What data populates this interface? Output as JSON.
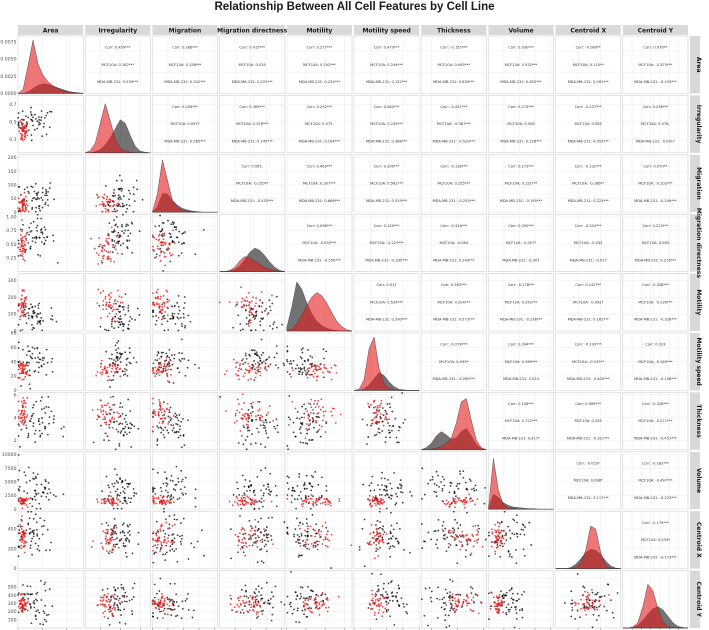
{
  "chart_data": {
    "type": "scatter",
    "kind": "pairs-matrix",
    "title": "Relationship Between All Cell Features by Cell Line",
    "features": [
      "Area",
      "Irregularity",
      "Migration",
      "Migration directness",
      "Motility",
      "Motility speed",
      "Thickness",
      "Volume",
      "Centroid X",
      "Centroid Y"
    ],
    "groups": [
      {
        "name": "MCF10A",
        "color": "#e41a1c"
      },
      {
        "name": "MDA-MB-231",
        "color": "#000000"
      }
    ],
    "axes": [
      {
        "range": [
          0,
          2700
        ],
        "ticks": [
          0,
          1000,
          2000
        ]
      },
      {
        "range": [
          0.15,
          0.8
        ],
        "ticks": [
          0.3,
          0.5,
          0.7
        ]
      },
      {
        "range": [
          0,
          210
        ],
        "ticks": [
          0,
          50,
          100,
          150,
          200
        ]
      },
      {
        "range": [
          0,
          1.05
        ],
        "ticks": [
          0.25,
          0.5,
          0.75,
          1.0
        ]
      },
      {
        "range": [
          0,
          340
        ],
        "ticks": [
          0,
          100,
          200,
          300
        ]
      },
      {
        "range": [
          0,
          80
        ],
        "ticks": [
          0,
          20,
          40,
          60,
          80
        ]
      },
      {
        "range": [
          1.2,
          6.2
        ],
        "ticks": [
          2,
          4,
          6
        ]
      },
      {
        "range": [
          0,
          10500
        ],
        "ticks": [
          0,
          2500,
          5000,
          7500,
          10000
        ]
      },
      {
        "range": [
          0,
          580
        ],
        "ticks": [
          0,
          200,
          400
        ]
      },
      {
        "range": [
          0,
          700
        ],
        "ticks": [
          100,
          200,
          300,
          400,
          500,
          600
        ]
      }
    ],
    "x_tick_labels": [
      [
        "0",
        "1000",
        "2000"
      ],
      [
        "0.3",
        "0.5",
        "0.7"
      ],
      [
        "0",
        "50",
        "100",
        "150",
        "200"
      ],
      [
        "0.25",
        "0.50",
        "0.75",
        "1.00"
      ],
      [
        "0",
        "100",
        "200",
        "300"
      ],
      [
        "0",
        "20",
        "40",
        "60",
        "80"
      ],
      [
        "2",
        "4",
        "6"
      ],
      [
        "2500",
        "5000",
        "7500",
        "10000"
      ],
      [
        "200",
        "400"
      ],
      [
        "100",
        "200",
        "300",
        "400",
        "500",
        "600"
      ]
    ],
    "y_tick_labels": [
      [
        "0.0000",
        "0.0025",
        "0.0050",
        "0.0075"
      ],
      [
        "0.3",
        "0.5",
        "0.7"
      ],
      [
        "0",
        "50",
        "100",
        "150",
        "200"
      ],
      [
        "0.25",
        "0.50",
        "0.75",
        "1.00"
      ],
      [
        "0",
        "100",
        "200",
        "300"
      ],
      [
        "0",
        "20",
        "40",
        "60",
        "80"
      ],
      [
        "2",
        "4",
        "6"
      ],
      [
        "0",
        "2500",
        "5000",
        "7500",
        "10000"
      ],
      [
        "0",
        "200",
        "400"
      ],
      [
        "100",
        "200",
        "300",
        "400",
        "500"
      ]
    ],
    "correlations": [
      {
        "row": 0,
        "col": 1,
        "corr": "Corr: 0.459***",
        "mcf10a": "MCF10A: 0.182***",
        "mda": "MDA-MB-231: 0.539***"
      },
      {
        "row": 0,
        "col": 2,
        "corr": "Corr: 0.286***",
        "mcf10a": "MCF10A: 0.158***",
        "mda": "MDA-MB-231: 0.202***"
      },
      {
        "row": 0,
        "col": 3,
        "corr": "Corr: 0.415***",
        "mcf10a": "MCF10A: 0.035",
        "mda": "MDA-MB-231: 0.225***"
      },
      {
        "row": 0,
        "col": 4,
        "corr": "Corr: 0.277***",
        "mcf10a": "MCF10A: 0.192***",
        "mda": "MDA-MB-231: 0.232***"
      },
      {
        "row": 0,
        "col": 5,
        "corr": "Corr: 0.479***",
        "mcf10a": "MCF10A: 0.244***",
        "mda": "MDA-MB-231: 0.122***"
      },
      {
        "row": 0,
        "col": 6,
        "corr": "Corr: -0.155***",
        "mcf10a": "MCF10A: 0.495***",
        "mda": "MDA-MB-231: 0.650***"
      },
      {
        "row": 0,
        "col": 7,
        "corr": "Corr: 0.930***",
        "mcf10a": "MCF10A: 0.932***",
        "mda": "MDA-MB-231: 0.853***"
      },
      {
        "row": 0,
        "col": 8,
        "corr": "Corr: -0.089**",
        "mcf10a": "MCF10A: 0.115**",
        "mda": "MDA-MB-231: 0.261***"
      },
      {
        "row": 0,
        "col": 9,
        "corr": "Corr: 0.075**",
        "mcf10a": "MCF10A: -0.375***",
        "mda": "MDA-MB-231: -0.153***"
      },
      {
        "row": 1,
        "col": 2,
        "corr": "Corr: 0.256***",
        "mcf10a": "MCF10A: 0.097*",
        "mda": "MDA-MB-231: 0.285***"
      },
      {
        "row": 1,
        "col": 3,
        "corr": "Corr: 0.369***",
        "mcf10a": "MCF10A: 0.316***",
        "mda": "MDA-MB-231: 0.145***"
      },
      {
        "row": 1,
        "col": 4,
        "corr": "Corr: 0.252***",
        "mcf10a": "MCF10A: 0.075.",
        "mda": "MDA-MB-231: 0.194***"
      },
      {
        "row": 1,
        "col": 5,
        "corr": "Corr: 0.482***",
        "mcf10a": "MCF10A: 0.245***",
        "mda": "MDA-MB-231: 0.388***"
      },
      {
        "row": 1,
        "col": 6,
        "corr": "Corr: -0.437***",
        "mcf10a": "MCF10A: -0.367***",
        "mda": "MDA-MB-231: -0.520***"
      },
      {
        "row": 1,
        "col": 7,
        "corr": "Corr: 0.275***",
        "mcf10a": "MCF10A: 0.008",
        "mda": "MDA-MB-231: 0.228***"
      },
      {
        "row": 1,
        "col": 8,
        "corr": "Corr: -0.137***",
        "mcf10a": "MCF10A: 0.065",
        "mda": "MDA-MB-231: 0.053***"
      },
      {
        "row": 1,
        "col": 9,
        "corr": "Corr: 0.236***",
        "mcf10a": "MCF10A: 0.076.",
        "mda": "MDA-MB-231: -0.091*"
      },
      {
        "row": 2,
        "col": 3,
        "corr": "Corr: 0.055.",
        "mcf10a": "MCF10A: -0.150**",
        "mda": "MDA-MB-231: -0.433***"
      },
      {
        "row": 2,
        "col": 4,
        "corr": "Corr: 0.463***",
        "mcf10a": "MCF10A: 0.307***",
        "mda": "MDA-MB-231: 0.666***"
      },
      {
        "row": 2,
        "col": 5,
        "corr": "Corr: 0.395***",
        "mcf10a": "MCF10A: 0.561***",
        "mda": "MDA-MB-231: 0.519***"
      },
      {
        "row": 2,
        "col": 6,
        "corr": "Corr: -0.138***",
        "mcf10a": "MCF10A: 0.155***",
        "mda": "MDA-MB-231: -0.253***"
      },
      {
        "row": 2,
        "col": 7,
        "corr": "Corr: 0.273***",
        "mcf10a": "MCF10A: 0.151***",
        "mda": "MDA-MB-231: -0.195***"
      },
      {
        "row": 2,
        "col": 8,
        "corr": "Corr: -0.132***",
        "mcf10a": "MCF10A: -0.186**",
        "mda": "MDA-MB-231: 0.223***"
      },
      {
        "row": 2,
        "col": 9,
        "corr": "Corr: 0.070**",
        "mcf10a": "MCF10A: -0.102***",
        "mda": "MDA-MB-231: -0.249***"
      },
      {
        "row": 3,
        "col": 4,
        "corr": "Corr: 0.098***",
        "mcf10a": "MCF10A: -0.035***",
        "mda": "MDA-MB-231: -0.550***"
      },
      {
        "row": 3,
        "col": 5,
        "corr": "Corr: 0.150***",
        "mcf10a": "MCF10A: -0.227***",
        "mda": "MDA-MB-231: -0.335***"
      },
      {
        "row": 3,
        "col": 6,
        "corr": "Corr: -0.416***",
        "mcf10a": "MCF10A: -0.064",
        "mda": "MDA-MB-231: 0.249***"
      },
      {
        "row": 3,
        "col": 7,
        "corr": "Corr: 0.290***",
        "mcf10a": "MCF10A: -0.057*",
        "mda": "MDA-MB-231: -0.007"
      },
      {
        "row": 3,
        "col": 8,
        "corr": "Corr: -0.204***",
        "mcf10a": "MCF10A: -0.032",
        "mda": "MDA-MB-231: -0.017"
      },
      {
        "row": 3,
        "col": 9,
        "corr": "Corr: 0.223***",
        "mcf10a": "MCF10A: 0.063",
        "mda": "MDA-MB-231: 0.216***"
      },
      {
        "row": 4,
        "col": 5,
        "corr": "Corr: 0.017",
        "mcf10a": "MCF10A: 0.524***",
        "mda": "MDA-MB-231: 0.390***"
      },
      {
        "row": 4,
        "col": 6,
        "corr": "Corr: 0.283***",
        "mcf10a": "MCF10A: 0.204***",
        "mda": "MDA-MB-231: 0.573***"
      },
      {
        "row": 4,
        "col": 7,
        "corr": "Corr: -0.178***",
        "mcf10a": "MCF10A: 0.242***",
        "mda": "MDA-MB-231: -0.238***"
      },
      {
        "row": 4,
        "col": 8,
        "corr": "Corr: 0.141***",
        "mcf10a": "MCF10A: -0.092*",
        "mda": "MDA-MB-231: 0.161***"
      },
      {
        "row": 4,
        "col": 9,
        "corr": "Corr: -0.328***",
        "mcf10a": "MCF10A: -0.130***",
        "mda": "MDA-MB-231: -0.326***"
      },
      {
        "row": 5,
        "col": 6,
        "corr": "Corr: -0.278***",
        "mcf10a": "MCF10A: 0.093*",
        "mda": "MDA-MB-231: -0.285***"
      },
      {
        "row": 5,
        "col": 7,
        "corr": "Corr: 0.394***",
        "mcf10a": "MCF10A: 0.269***",
        "mda": "MDA-MB-231: 0.024"
      },
      {
        "row": 5,
        "col": 8,
        "corr": "Corr: -0.193***",
        "mcf10a": "MCF10A: -0.125**",
        "mda": "MDA-MB-231: -0.400***"
      },
      {
        "row": 5,
        "col": 9,
        "corr": "Corr: 0.033",
        "mcf10a": "MCF10A: -0.165***",
        "mda": "MDA-MB-231: -0.108***"
      },
      {
        "row": 6,
        "col": 7,
        "corr": "Corr: 0.146***",
        "mcf10a": "MCF10A: 0.722***",
        "mda": "MDA-MB-231: 0.417*"
      },
      {
        "row": 6,
        "col": 8,
        "corr": "Corr: 0.089***",
        "mcf10a": "MCF10A: 0.035",
        "mda": "MDA-MB-231: -0.321***"
      },
      {
        "row": 6,
        "col": 9,
        "corr": "Corr: -0.328***",
        "mcf10a": "MCF10A: -0.271***",
        "mda": "MDA-MB-231: -0.451***"
      },
      {
        "row": 7,
        "col": 8,
        "corr": "Corr: -0.053*",
        "mcf10a": "MCF10A: 0.098*",
        "mda": "MDA-MB-231: 0.117***"
      },
      {
        "row": 7,
        "col": 9,
        "corr": "Corr: -0.182***",
        "mcf10a": "MCF10A: -0.497***",
        "mda": "MDA-MB-231: -0.223***"
      },
      {
        "row": 8,
        "col": 9,
        "corr": "Corr: -0.179***",
        "mcf10a": "MCF10A: 0.093*",
        "mda": "MDA-MB-231: -0.173***"
      }
    ],
    "density": [
      {
        "MCF10A": [
          0.0,
          0.07,
          0.52,
          1.0,
          0.55,
          0.34,
          0.22,
          0.14,
          0.09,
          0.05,
          0.03,
          0.02,
          0.01,
          0.0
        ],
        "MDA-MB-231": [
          0.0,
          0.0,
          0.03,
          0.09,
          0.15,
          0.18,
          0.17,
          0.14,
          0.1,
          0.07,
          0.04,
          0.02,
          0.01,
          0.0
        ]
      },
      {
        "MCF10A": [
          0.0,
          0.04,
          0.18,
          0.55,
          0.92,
          0.6,
          0.25,
          0.09,
          0.03,
          0.01,
          0.0,
          0.0,
          0.0,
          0.0
        ],
        "MDA-MB-231": [
          0.0,
          0.0,
          0.02,
          0.06,
          0.15,
          0.28,
          0.45,
          0.62,
          0.55,
          0.32,
          0.12,
          0.03,
          0.01,
          0.0
        ]
      },
      {
        "MCF10A": [
          0.0,
          0.35,
          0.98,
          0.6,
          0.22,
          0.09,
          0.04,
          0.02,
          0.01,
          0.0,
          0.0,
          0.0,
          0.0,
          0.0
        ],
        "MDA-MB-231": [
          0.0,
          0.1,
          0.35,
          0.34,
          0.22,
          0.13,
          0.07,
          0.04,
          0.02,
          0.01,
          0.0,
          0.0,
          0.0,
          0.0
        ]
      },
      {
        "MCF10A": [
          0.0,
          0.0,
          0.02,
          0.08,
          0.2,
          0.28,
          0.26,
          0.2,
          0.14,
          0.08,
          0.04,
          0.02,
          0.01,
          0.0
        ],
        "MDA-MB-231": [
          0.0,
          0.0,
          0.01,
          0.04,
          0.1,
          0.22,
          0.36,
          0.44,
          0.4,
          0.3,
          0.18,
          0.08,
          0.02,
          0.0
        ]
      },
      {
        "MCF10A": [
          0.0,
          0.04,
          0.14,
          0.3,
          0.48,
          0.64,
          0.72,
          0.66,
          0.52,
          0.34,
          0.18,
          0.08,
          0.02,
          0.0
        ],
        "MDA-MB-231": [
          0.06,
          0.45,
          0.92,
          0.78,
          0.52,
          0.32,
          0.18,
          0.1,
          0.05,
          0.02,
          0.01,
          0.0,
          0.0,
          0.0
        ]
      },
      {
        "MCF10A": [
          0.0,
          0.02,
          0.2,
          0.78,
          1.0,
          0.42,
          0.12,
          0.04,
          0.01,
          0.0,
          0.0,
          0.0,
          0.0,
          0.0
        ],
        "MDA-MB-231": [
          0.0,
          0.0,
          0.03,
          0.1,
          0.22,
          0.33,
          0.28,
          0.16,
          0.07,
          0.02,
          0.01,
          0.0,
          0.0,
          0.0
        ]
      },
      {
        "MCF10A": [
          0.0,
          0.0,
          0.01,
          0.03,
          0.06,
          0.12,
          0.22,
          0.5,
          0.9,
          0.96,
          0.55,
          0.18,
          0.04,
          0.0
        ],
        "MDA-MB-231": [
          0.0,
          0.04,
          0.12,
          0.26,
          0.34,
          0.28,
          0.2,
          0.22,
          0.34,
          0.4,
          0.26,
          0.1,
          0.02,
          0.0
        ]
      },
      {
        "MCF10A": [
          0.0,
          0.95,
          0.35,
          0.08,
          0.02,
          0.01,
          0.0,
          0.0,
          0.0,
          0.0,
          0.0,
          0.0,
          0.0,
          0.0
        ],
        "MDA-MB-231": [
          0.0,
          0.28,
          0.22,
          0.12,
          0.07,
          0.04,
          0.03,
          0.02,
          0.01,
          0.01,
          0.0,
          0.0,
          0.0,
          0.0
        ]
      },
      {
        "MCF10A": [
          0.0,
          0.0,
          0.0,
          0.0,
          0.02,
          0.1,
          0.34,
          0.8,
          0.74,
          0.3,
          0.06,
          0.01,
          0.0,
          0.0
        ],
        "MDA-MB-231": [
          0.0,
          0.0,
          0.0,
          0.02,
          0.08,
          0.18,
          0.3,
          0.36,
          0.34,
          0.26,
          0.14,
          0.05,
          0.01,
          0.0
        ]
      },
      {
        "MCF10A": [
          0.0,
          0.0,
          0.02,
          0.1,
          0.4,
          0.82,
          0.7,
          0.36,
          0.12,
          0.03,
          0.01,
          0.0,
          0.0,
          0.0
        ],
        "MDA-MB-231": [
          0.0,
          0.0,
          0.01,
          0.05,
          0.14,
          0.26,
          0.36,
          0.4,
          0.34,
          0.22,
          0.1,
          0.03,
          0.01,
          0.0
        ]
      }
    ]
  }
}
